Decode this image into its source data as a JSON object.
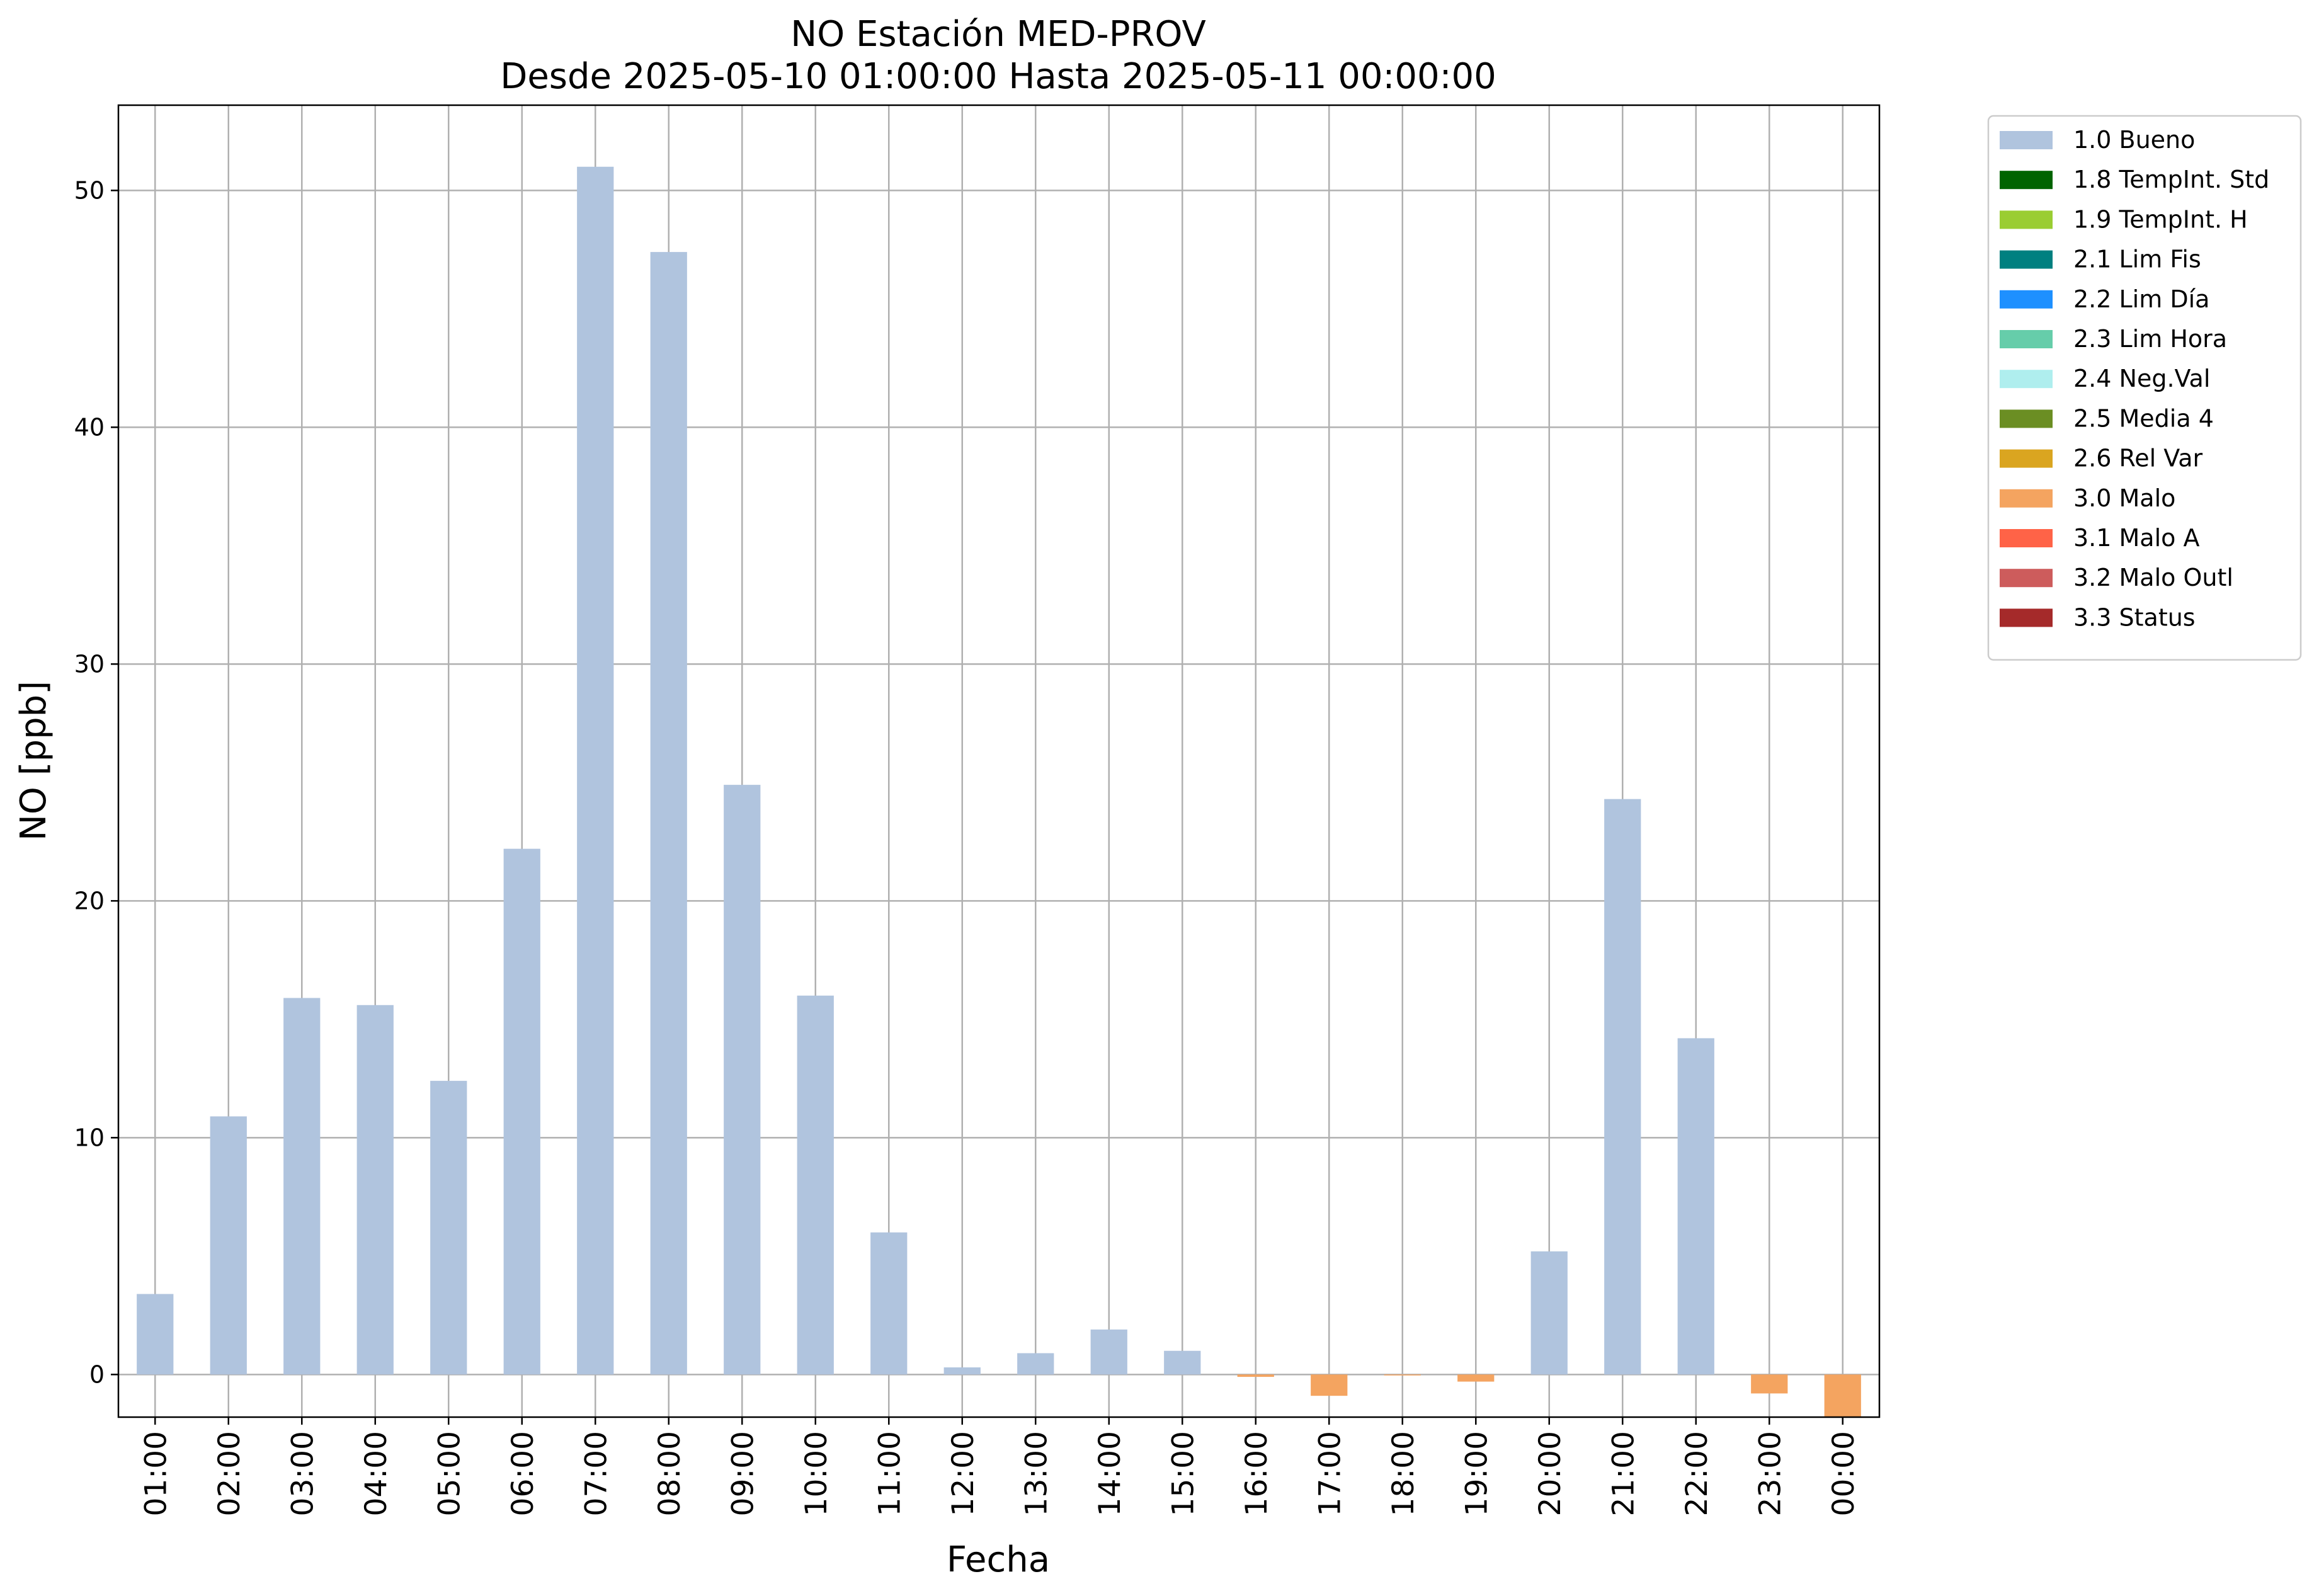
{
  "chart_data": {
    "type": "bar",
    "title": "NO Estación MED-PROV",
    "subtitle": "Desde 2025-05-10 01:00:00 Hasta 2025-05-11 00:00:00",
    "xlabel": "Fecha",
    "ylabel": "NO [ppb]",
    "ylim": [
      -1.8,
      53.6
    ],
    "yticks": [
      0,
      10,
      20,
      30,
      40,
      50
    ],
    "grid": true,
    "legend_position": "outside-top-right",
    "categories": [
      "01:00",
      "02:00",
      "03:00",
      "04:00",
      "05:00",
      "06:00",
      "07:00",
      "08:00",
      "09:00",
      "10:00",
      "11:00",
      "12:00",
      "13:00",
      "14:00",
      "15:00",
      "16:00",
      "17:00",
      "18:00",
      "19:00",
      "20:00",
      "21:00",
      "22:00",
      "23:00",
      "00:00"
    ],
    "values": [
      3.4,
      10.9,
      15.9,
      15.6,
      12.4,
      22.2,
      51.0,
      47.4,
      24.9,
      16.0,
      6.0,
      0.3,
      0.9,
      1.9,
      1.0,
      -0.1,
      -0.9,
      0.0,
      -0.3,
      5.2,
      24.3,
      14.2,
      -0.8,
      -1.8
    ],
    "flags": [
      "1.0 Bueno",
      "1.0 Bueno",
      "1.0 Bueno",
      "1.0 Bueno",
      "1.0 Bueno",
      "1.0 Bueno",
      "1.0 Bueno",
      "1.0 Bueno",
      "1.0 Bueno",
      "1.0 Bueno",
      "1.0 Bueno",
      "1.0 Bueno",
      "1.0 Bueno",
      "1.0 Bueno",
      "1.0 Bueno",
      "3.0 Malo",
      "3.0 Malo",
      "3.0 Malo",
      "3.0 Malo",
      "1.0 Bueno",
      "1.0 Bueno",
      "1.0 Bueno",
      "3.0 Malo",
      "3.0 Malo"
    ],
    "legend": [
      {
        "label": "1.0 Bueno",
        "color": "#b0c4de"
      },
      {
        "label": "1.8 TempInt. Std",
        "color": "#006400"
      },
      {
        "label": "1.9 TempInt. H",
        "color": "#9acd32"
      },
      {
        "label": "2.1 Lim Fis",
        "color": "#008080"
      },
      {
        "label": "2.2 Lim Día",
        "color": "#1e90ff"
      },
      {
        "label": "2.3 Lim Hora",
        "color": "#66cdaa"
      },
      {
        "label": "2.4 Neg.Val",
        "color": "#afeeee"
      },
      {
        "label": "2.5 Media 4",
        "color": "#6b8e23"
      },
      {
        "label": "2.6 Rel Var",
        "color": "#daa520"
      },
      {
        "label": "3.0 Malo",
        "color": "#f4a460"
      },
      {
        "label": "3.1 Malo A",
        "color": "#ff6347"
      },
      {
        "label": "3.2 Malo Outl",
        "color": "#cd5c5c"
      },
      {
        "label": "3.3 Status",
        "color": "#a52a2a"
      }
    ]
  }
}
